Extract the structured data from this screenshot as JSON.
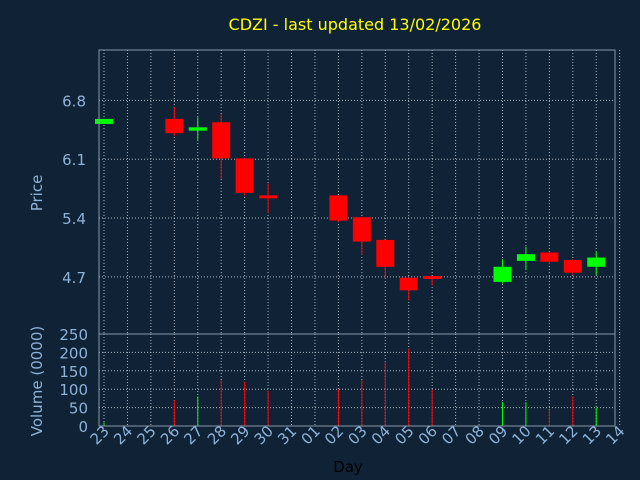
{
  "colors": {
    "background": "#0f2236",
    "title": "#ffff00",
    "axis_text": "#8fb2d8",
    "up": "#00ff00",
    "down": "#ff0000",
    "grid": "#c8d0d8"
  },
  "chart_data": {
    "type": "candlestick",
    "title": "CDZI - last updated 13/02/2026",
    "xlabel": "Day",
    "ylabel": "Price",
    "volume_label": "Volume (0000)",
    "grid": true,
    "x_ticks": [
      "23",
      "24",
      "25",
      "26",
      "27",
      "28",
      "29",
      "30",
      "31",
      "01",
      "02",
      "03",
      "04",
      "05",
      "06",
      "07",
      "08",
      "09",
      "10",
      "11",
      "12",
      "13",
      "14"
    ],
    "price_ticks": [
      "6.8",
      "6.1",
      "5.4",
      "4.7"
    ],
    "price_tick_values": [
      6.8,
      6.1,
      5.4,
      4.7
    ],
    "price_range": [
      4.02,
      7.4
    ],
    "volume_ticks": [
      "250",
      "200",
      "150",
      "100",
      "50",
      "0"
    ],
    "volume_tick_values": [
      250,
      200,
      150,
      100,
      50,
      0
    ],
    "volume_range": [
      0,
      250
    ],
    "candles": [
      {
        "day": "23",
        "open": 6.52,
        "high": 6.58,
        "low": 6.52,
        "close": 6.58,
        "volume": 10
      },
      {
        "day": "26",
        "open": 6.58,
        "high": 6.72,
        "low": 6.38,
        "close": 6.41,
        "volume": 70
      },
      {
        "day": "27",
        "open": 6.44,
        "high": 6.6,
        "low": 6.33,
        "close": 6.48,
        "volume": 80
      },
      {
        "day": "28",
        "open": 6.54,
        "high": 6.64,
        "low": 5.87,
        "close": 6.11,
        "volume": 125
      },
      {
        "day": "29",
        "open": 6.11,
        "high": 6.11,
        "low": 5.67,
        "close": 5.7,
        "volume": 120
      },
      {
        "day": "30",
        "open": 5.67,
        "high": 5.81,
        "low": 5.46,
        "close": 5.64,
        "volume": 95
      },
      {
        "day": "02",
        "open": 5.67,
        "high": 5.67,
        "low": 5.35,
        "close": 5.37,
        "volume": 100
      },
      {
        "day": "03",
        "open": 5.41,
        "high": 5.41,
        "low": 4.96,
        "close": 5.12,
        "volume": 125
      },
      {
        "day": "04",
        "open": 5.14,
        "high": 5.14,
        "low": 4.68,
        "close": 4.82,
        "volume": 175
      },
      {
        "day": "05",
        "open": 4.69,
        "high": 4.69,
        "low": 4.42,
        "close": 4.54,
        "volume": 210
      },
      {
        "day": "06",
        "open": 4.71,
        "high": 4.71,
        "low": 4.6,
        "close": 4.68,
        "volume": 100
      },
      {
        "day": "09",
        "open": 4.64,
        "high": 4.91,
        "low": 4.62,
        "close": 4.82,
        "volume": 65
      },
      {
        "day": "10",
        "open": 4.89,
        "high": 5.06,
        "low": 4.78,
        "close": 4.97,
        "volume": 65
      },
      {
        "day": "11",
        "open": 4.99,
        "high": 5.0,
        "low": 4.85,
        "close": 4.88,
        "volume": 45
      },
      {
        "day": "12",
        "open": 4.9,
        "high": 4.91,
        "low": 4.72,
        "close": 4.75,
        "volume": 80
      },
      {
        "day": "13",
        "open": 4.82,
        "high": 5.0,
        "low": 4.72,
        "close": 4.93,
        "volume": 50
      }
    ]
  }
}
